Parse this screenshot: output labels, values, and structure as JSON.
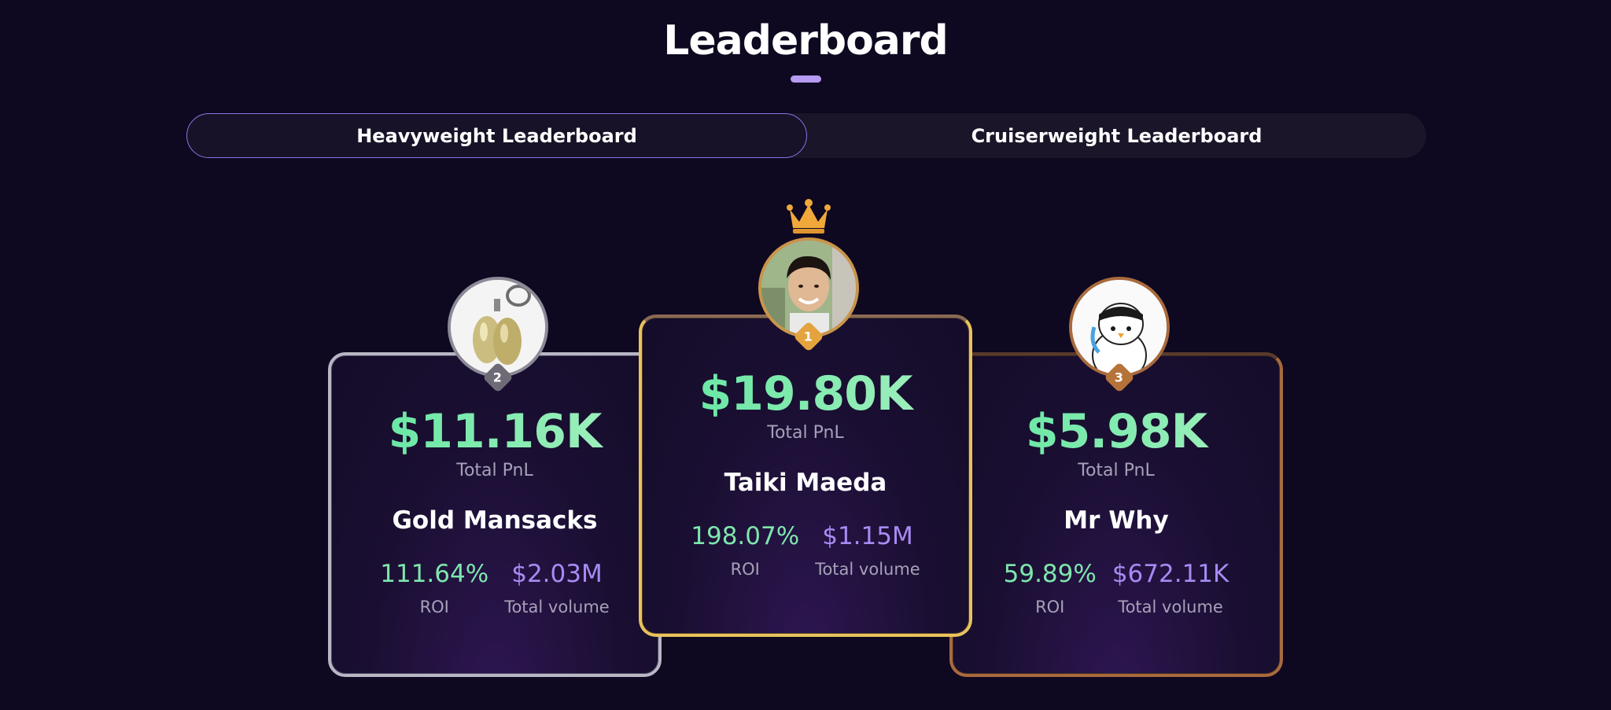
{
  "header": {
    "title": "Leaderboard"
  },
  "tabs": [
    {
      "label": "Heavyweight Leaderboard",
      "active": true
    },
    {
      "label": "Cruiserweight Leaderboard",
      "active": false
    }
  ],
  "podium": [
    {
      "rank": "2",
      "tier": "silver",
      "avatar_icon": "keychain-avatar",
      "pnl": "$11.16K",
      "pnl_label": "Total PnL",
      "name": "Gold Mansacks",
      "roi": "111.64%",
      "roi_label": "ROI",
      "volume": "$2.03M",
      "volume_label": "Total volume"
    },
    {
      "rank": "1",
      "tier": "gold",
      "avatar_icon": "person-photo-avatar",
      "pnl": "$19.80K",
      "pnl_label": "Total PnL",
      "name": "Taiki Maeda",
      "roi": "198.07%",
      "roi_label": "ROI",
      "volume": "$1.15M",
      "volume_label": "Total volume"
    },
    {
      "rank": "3",
      "tier": "bronze",
      "avatar_icon": "penguin-avatar",
      "pnl": "$5.98K",
      "pnl_label": "Total PnL",
      "name": "Mr Why",
      "roi": "59.89%",
      "roi_label": "ROI",
      "volume": "$672.11K",
      "volume_label": "Total volume"
    }
  ],
  "colors": {
    "background": "#0e0820",
    "accent": "#b79bf2",
    "pnl_green": "#6fe3a8",
    "volume_purple": "#a78bf3",
    "gold": "#e8c35c",
    "silver": "#b9b6c5",
    "bronze": "#a86a3e"
  }
}
